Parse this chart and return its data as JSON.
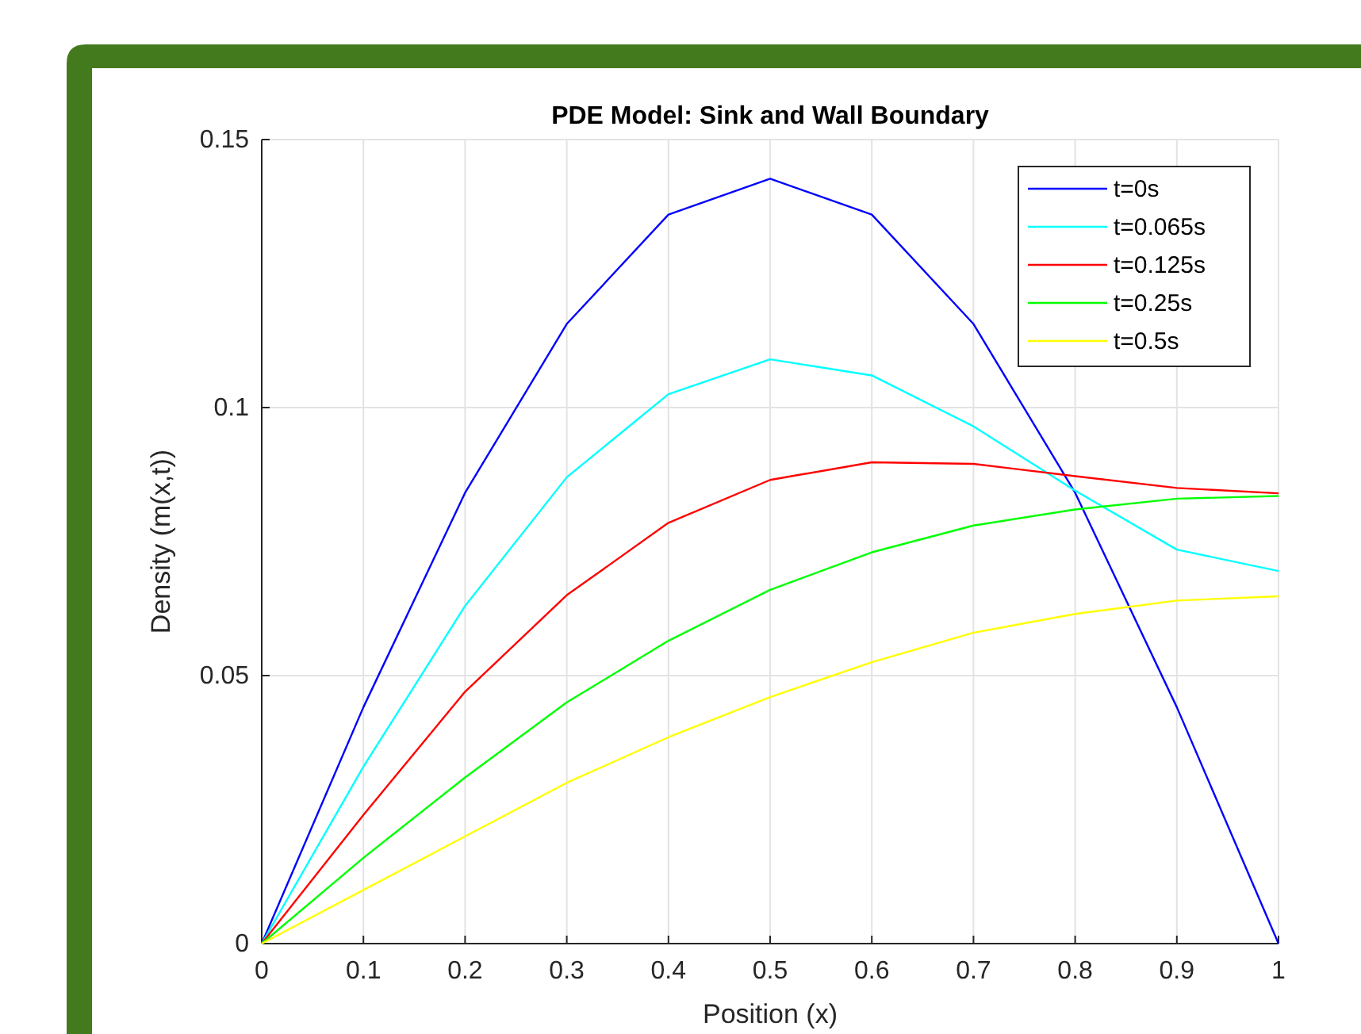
{
  "chart_data": {
    "type": "line",
    "title": "PDE Model: Sink and Wall Boundary",
    "xlabel": "Position (x)",
    "ylabel": "Density (m(x,t))",
    "x": [
      0,
      0.1,
      0.2,
      0.3,
      0.4,
      0.5,
      0.6,
      0.7,
      0.8,
      0.9,
      1
    ],
    "series": [
      {
        "name": "t=0s",
        "color": "#0000ff",
        "values": [
          0,
          0.0441,
          0.0841,
          0.1156,
          0.136,
          0.1427,
          0.136,
          0.1156,
          0.0841,
          0.0441,
          0
        ]
      },
      {
        "name": "t=0.065s",
        "color": "#00ffff",
        "values": [
          0,
          0.033,
          0.063,
          0.087,
          0.1025,
          0.109,
          0.106,
          0.0965,
          0.0845,
          0.0735,
          0.0695
        ]
      },
      {
        "name": "t=0.125s",
        "color": "#ff0000",
        "values": [
          0,
          0.024,
          0.047,
          0.065,
          0.0785,
          0.0865,
          0.0898,
          0.0895,
          0.0872,
          0.085,
          0.084
        ]
      },
      {
        "name": "t=0.25s",
        "color": "#00ff00",
        "values": [
          0,
          0.016,
          0.031,
          0.045,
          0.0565,
          0.066,
          0.073,
          0.078,
          0.081,
          0.083,
          0.0835
        ]
      },
      {
        "name": "t=0.5s",
        "color": "#ffff00",
        "values": [
          0,
          0.01,
          0.02,
          0.03,
          0.0385,
          0.046,
          0.0525,
          0.058,
          0.0615,
          0.064,
          0.0648
        ]
      }
    ],
    "xlim": [
      0,
      1
    ],
    "xticks": [
      0,
      0.1,
      0.2,
      0.3,
      0.4,
      0.5,
      0.6,
      0.7,
      0.8,
      0.9,
      1
    ],
    "ylim": [
      0,
      0.15
    ],
    "yticks": [
      0,
      0.05,
      0.1,
      0.15
    ],
    "grid": true,
    "legend": "top right",
    "marker": "none",
    "line_style": "solid"
  }
}
